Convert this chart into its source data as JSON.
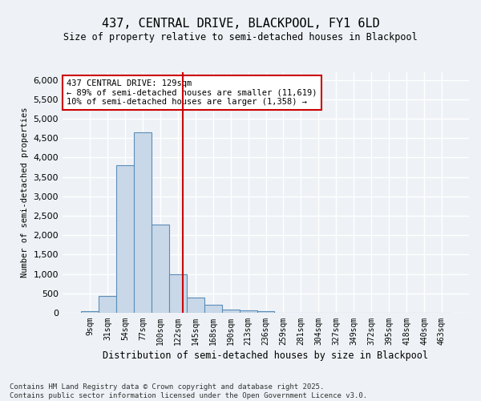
{
  "title1": "437, CENTRAL DRIVE, BLACKPOOL, FY1 6LD",
  "title2": "Size of property relative to semi-detached houses in Blackpool",
  "xlabel": "Distribution of semi-detached houses by size in Blackpool",
  "ylabel": "Number of semi-detached properties",
  "footer": "Contains HM Land Registry data © Crown copyright and database right 2025.\nContains public sector information licensed under the Open Government Licence v3.0.",
  "bin_labels": [
    "9sqm",
    "31sqm",
    "54sqm",
    "77sqm",
    "100sqm",
    "122sqm",
    "145sqm",
    "168sqm",
    "190sqm",
    "213sqm",
    "236sqm",
    "259sqm",
    "281sqm",
    "304sqm",
    "327sqm",
    "349sqm",
    "372sqm",
    "395sqm",
    "418sqm",
    "440sqm",
    "463sqm"
  ],
  "bar_values": [
    50,
    430,
    3800,
    4650,
    2280,
    1000,
    400,
    200,
    80,
    65,
    50,
    0,
    0,
    0,
    0,
    0,
    0,
    0,
    0,
    0,
    0
  ],
  "bar_color": "#c8d8e8",
  "bar_edge_color": "#5b8db8",
  "vline_color": "#cc0000",
  "annotation_text": "437 CENTRAL DRIVE: 129sqm\n← 89% of semi-detached houses are smaller (11,619)\n10% of semi-detached houses are larger (1,358) →",
  "annotation_box_color": "#cc0000",
  "ylim": [
    0,
    6200
  ],
  "yticks": [
    0,
    500,
    1000,
    1500,
    2000,
    2500,
    3000,
    3500,
    4000,
    4500,
    5000,
    5500,
    6000
  ],
  "bg_color": "#eef2f6",
  "plot_bg_color": "#eef2f6",
  "grid_color": "#ffffff",
  "property_sqm": 129
}
